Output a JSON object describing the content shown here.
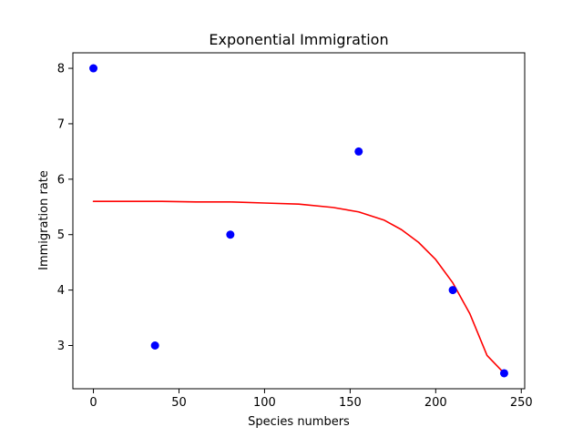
{
  "chart_data": {
    "type": "scatter",
    "title": "Exponential Immigration",
    "xlabel": "Species numbers",
    "ylabel": "Immigration rate",
    "xlim": [
      -12,
      252
    ],
    "ylim": [
      2.22,
      8.28
    ],
    "xticks": [
      0,
      50,
      100,
      150,
      200,
      250
    ],
    "yticks": [
      3,
      4,
      5,
      6,
      7,
      8
    ],
    "xtick_labels": [
      "0",
      "50",
      "100",
      "150",
      "200",
      "250"
    ],
    "ytick_labels": [
      "3",
      "4",
      "5",
      "6",
      "7",
      "8"
    ],
    "grid": false,
    "series": [
      {
        "type": "scatter",
        "color": "#0000ff",
        "x": [
          0,
          36,
          80,
          155,
          210,
          240
        ],
        "y": [
          8,
          3,
          5,
          6.5,
          4,
          2.5
        ]
      },
      {
        "type": "line",
        "color": "#ff0000",
        "x": [
          0,
          20,
          40,
          60,
          80,
          100,
          120,
          140,
          155,
          170,
          180,
          190,
          200,
          210,
          220,
          230,
          240
        ],
        "y": [
          5.6,
          5.6,
          5.6,
          5.59,
          5.59,
          5.57,
          5.55,
          5.49,
          5.41,
          5.26,
          5.09,
          4.86,
          4.55,
          4.13,
          3.57,
          2.82,
          2.5
        ]
      }
    ]
  }
}
